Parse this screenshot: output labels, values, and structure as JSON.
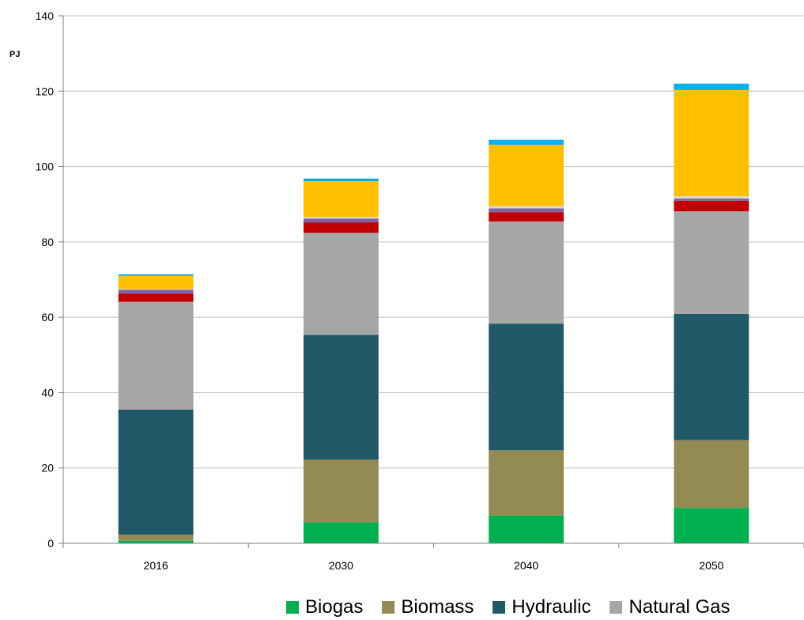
{
  "chart_data": {
    "type": "bar",
    "stacked": true,
    "title": "",
    "xlabel": "",
    "ylabel": "PJ",
    "ylim": [
      0,
      140
    ],
    "yticks": [
      0,
      20,
      40,
      60,
      80,
      100,
      120,
      140
    ],
    "grid": true,
    "legend_position": "bottom",
    "categories": [
      "2016",
      "2030",
      "2040",
      "2050"
    ],
    "series": [
      {
        "name": "Biogas",
        "color": "#00b050",
        "values": [
          0.7,
          5.6,
          7.4,
          9.4
        ]
      },
      {
        "name": "Biomass",
        "color": "#948a54",
        "values": [
          1.6,
          16.6,
          17.3,
          18.0
        ]
      },
      {
        "name": "Hydraulic",
        "color": "#215968",
        "values": [
          33.2,
          33.1,
          33.6,
          33.5
        ]
      },
      {
        "name": "Natural Gas",
        "color": "#a6a6a6",
        "values": [
          28.6,
          27.1,
          27.1,
          27.2
        ]
      },
      {
        "color": "#c00000",
        "values": [
          2.2,
          2.8,
          2.5,
          2.8
        ]
      },
      {
        "color": "#8064a2",
        "values": [
          1.0,
          1.0,
          1.0,
          0.6
        ]
      },
      {
        "color": "#d9d9d9",
        "values": [
          0.2,
          0.4,
          0.6,
          0.6
        ]
      },
      {
        "color": "#ffc000",
        "values": [
          3.5,
          9.5,
          16.3,
          28.2
        ]
      },
      {
        "color": "#00b0f0",
        "values": [
          0.4,
          0.7,
          1.3,
          1.7
        ]
      }
    ]
  }
}
